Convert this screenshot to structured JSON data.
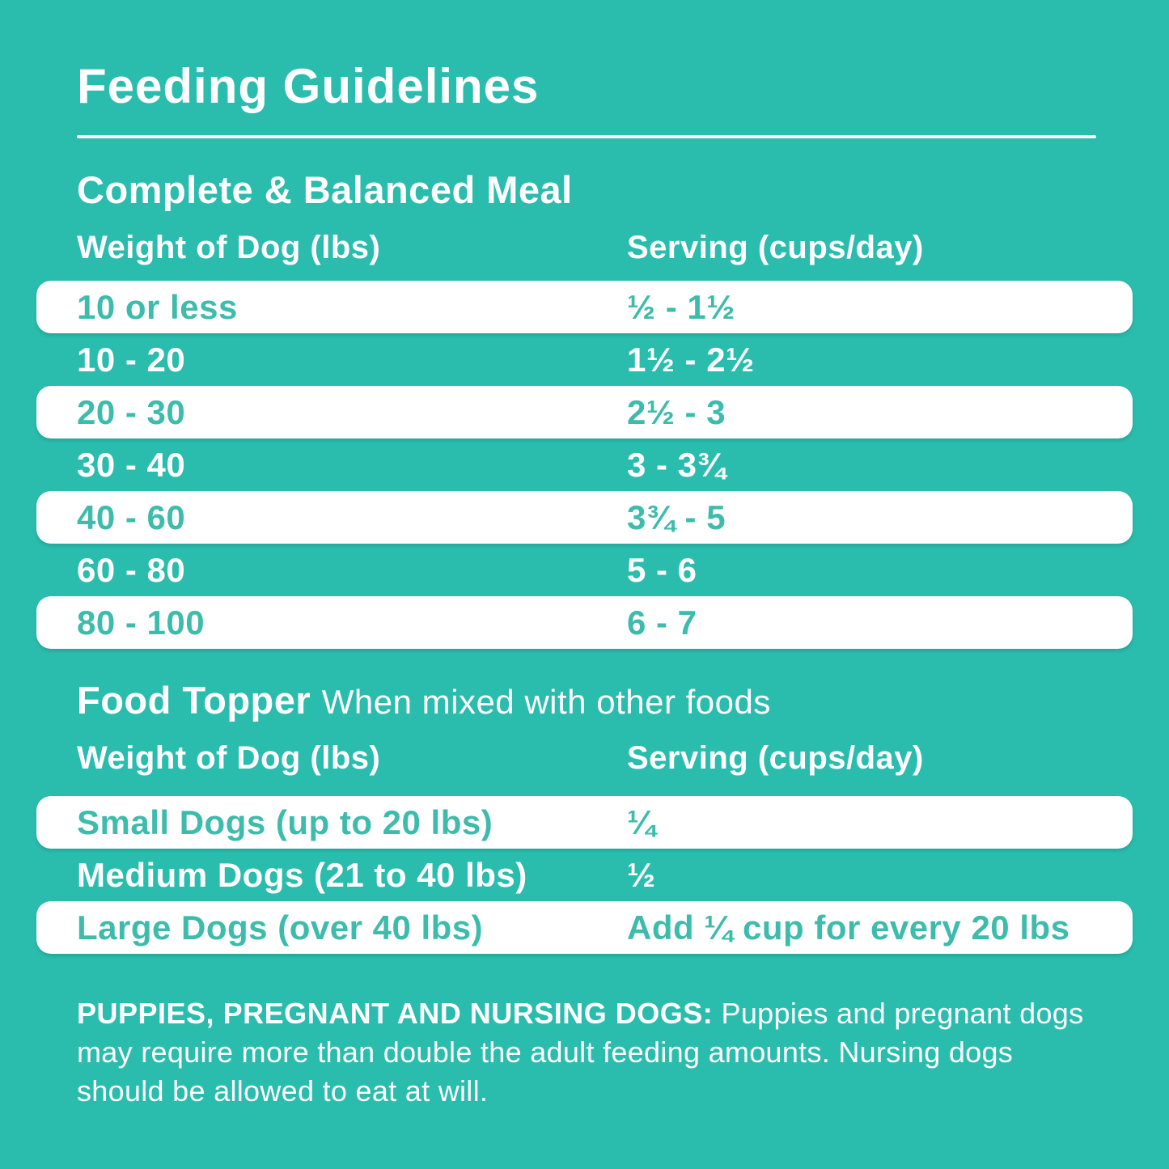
{
  "theme": {
    "bg": "#2abdae",
    "row-white": "#ffffff",
    "teal-text": "#3dbcab",
    "white-text": "#ffffff"
  },
  "page": {
    "title": "Feeding Guidelines"
  },
  "meal_section": {
    "heading": "Complete & Balanced Meal",
    "columns": [
      "Weight of Dog (lbs)",
      "Serving (cups/day)"
    ],
    "rows": [
      {
        "weight": "10 or less",
        "serving": "½ - 1½"
      },
      {
        "weight": "10 - 20",
        "serving": "1½ - 2½"
      },
      {
        "weight": "20 - 30",
        "serving": "2½ - 3"
      },
      {
        "weight": "30 - 40",
        "serving": "3 - 3¾"
      },
      {
        "weight": "40 - 60",
        "serving": "3¾ - 5"
      },
      {
        "weight": "60 - 80",
        "serving": "5 - 6"
      },
      {
        "weight": "80 - 100",
        "serving": "6 - 7"
      }
    ]
  },
  "topper_section": {
    "heading": "Food Topper",
    "subheading": "When mixed with other foods",
    "columns": [
      "Weight of Dog (lbs)",
      "Serving (cups/day)"
    ],
    "rows": [
      {
        "weight": "Small Dogs (up to 20 lbs)",
        "serving": "¼"
      },
      {
        "weight": "Medium Dogs (21 to 40 lbs)",
        "serving": "½"
      },
      {
        "weight": "Large Dogs (over 40 lbs)",
        "serving": "Add ¼ cup for every 20 lbs"
      }
    ]
  },
  "footer": {
    "bold_label": "PUPPIES, PREGNANT AND NURSING DOGS:",
    "text": " Puppies and pregnant dogs may require more than double the adult feeding amounts. Nursing dogs should be allowed to eat at will."
  }
}
